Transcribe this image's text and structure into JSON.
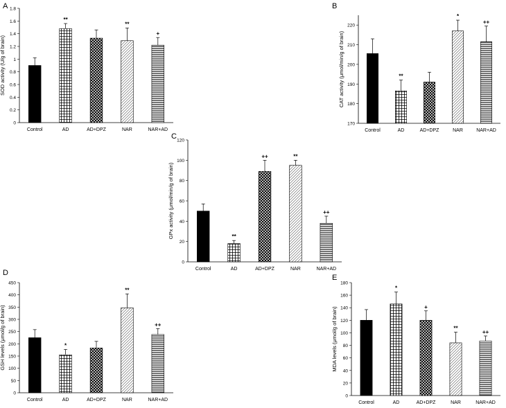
{
  "chart_data": [
    {
      "panel": "A",
      "type": "bar",
      "categories": [
        "Control",
        "AD",
        "AD+DPZ",
        "NAR",
        "NAR+AD"
      ],
      "values": [
        0.9,
        1.48,
        1.33,
        1.29,
        1.22
      ],
      "errors": [
        0.12,
        0.08,
        0.13,
        0.2,
        0.12
      ],
      "annotations": [
        "",
        "**",
        "",
        "**",
        "+"
      ],
      "ylabel": "SOD activity (U/g of brain)",
      "ylim": [
        0,
        1.8
      ],
      "yticks": [
        "0",
        "0.2",
        "0.4",
        "0.6",
        "0.8",
        "1",
        "1.2",
        "1.4",
        "1.6",
        "1.8"
      ],
      "grid": false,
      "legend": "none"
    },
    {
      "panel": "B",
      "type": "bar",
      "categories": [
        "Control",
        "AD",
        "AD+DPZ",
        "NAR",
        "NAR+AD"
      ],
      "values": [
        205.5,
        186.5,
        191,
        217,
        211.5
      ],
      "errors": [
        7.5,
        5.5,
        5,
        5.5,
        8
      ],
      "annotations": [
        "",
        "**",
        "",
        "*",
        "++"
      ],
      "ylabel": "CAT activity (μmol/min/g of brain)",
      "ylim": [
        170,
        225
      ],
      "yticks": [
        "170",
        "180",
        "190",
        "200",
        "210",
        "220"
      ],
      "grid": false,
      "legend": "none"
    },
    {
      "panel": "C",
      "type": "bar",
      "categories": [
        "Control",
        "AD",
        "AD+DPZ",
        "NAR",
        "NAR+AD"
      ],
      "values": [
        50,
        18,
        89,
        95,
        38
      ],
      "errors": [
        7,
        3,
        11,
        5,
        7
      ],
      "annotations": [
        "",
        "**",
        "++",
        "**",
        "++"
      ],
      "ylabel": "GPx activity (μmol/min/g of brain)",
      "ylim": [
        0,
        120
      ],
      "yticks": [
        "0",
        "20",
        "40",
        "60",
        "80",
        "100",
        "120"
      ],
      "grid": false,
      "legend": "none"
    },
    {
      "panel": "D",
      "type": "bar",
      "categories": [
        "Control",
        "AD",
        "AD+DPZ",
        "NAR",
        "NAR+AD"
      ],
      "values": [
        225,
        155,
        183,
        347,
        238
      ],
      "errors": [
        33,
        22,
        27,
        57,
        24
      ],
      "annotations": [
        "",
        "*",
        "",
        "**",
        "++"
      ],
      "ylabel": "GSH levels (μmol/g of brain)",
      "ylim": [
        0,
        450
      ],
      "yticks": [
        "0",
        "50",
        "100",
        "150",
        "200",
        "250",
        "300",
        "350",
        "400",
        "450"
      ],
      "grid": false,
      "legend": "none"
    },
    {
      "panel": "E",
      "type": "bar",
      "categories": [
        "Control",
        "AD",
        "AD+DPZ",
        "NAR",
        "NAR+AD"
      ],
      "values": [
        120,
        146,
        120,
        84,
        87
      ],
      "errors": [
        17,
        19,
        15,
        17,
        8
      ],
      "annotations": [
        "",
        "*",
        "+",
        "**",
        "++"
      ],
      "ylabel": "MDA levels (μmol/g of brain)",
      "ylim": [
        0,
        180
      ],
      "yticks": [
        "0",
        "20",
        "40",
        "60",
        "80",
        "100",
        "120",
        "140",
        "160",
        "180"
      ],
      "grid": false,
      "legend": "none"
    }
  ],
  "fills": [
    "solid-black",
    "grid-pattern",
    "crosshatch-pattern",
    "diagonal-pattern",
    "horizontal-stripes-pattern"
  ],
  "colors": {
    "ink": "#000000",
    "paper": "#ffffff"
  }
}
